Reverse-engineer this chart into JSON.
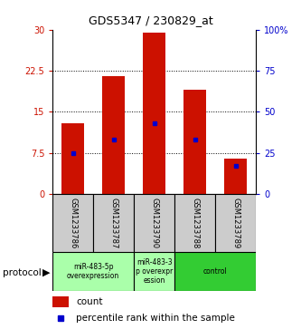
{
  "title": "GDS5347 / 230829_at",
  "samples": [
    "GSM1233786",
    "GSM1233787",
    "GSM1233790",
    "GSM1233788",
    "GSM1233789"
  ],
  "counts": [
    13,
    21.5,
    29.5,
    19,
    6.5
  ],
  "percentile_ranks": [
    25,
    33,
    43,
    33,
    17
  ],
  "ylim_left": [
    0,
    30
  ],
  "ylim_right": [
    0,
    100
  ],
  "yticks_left": [
    0,
    7.5,
    15,
    22.5,
    30
  ],
  "yticks_right": [
    0,
    25,
    50,
    75,
    100
  ],
  "ytick_labels_left": [
    "0",
    "7.5",
    "15",
    "22.5",
    "30"
  ],
  "ytick_labels_right": [
    "0",
    "25",
    "50",
    "75",
    "100%"
  ],
  "bar_color": "#cc1100",
  "dot_color": "#0000cc",
  "label_area_color": "#cccccc",
  "bar_width": 0.55,
  "groups": [
    {
      "start": 0,
      "end": 1,
      "label": "miR-483-5p\noverexpression",
      "color": "#aaffaa"
    },
    {
      "start": 2,
      "end": 2,
      "label": "miR-483-3\np overexpr\nession",
      "color": "#aaffaa"
    },
    {
      "start": 3,
      "end": 4,
      "label": "control",
      "color": "#33cc33"
    }
  ],
  "legend_count_label": "count",
  "legend_percentile_label": "percentile rank within the sample"
}
